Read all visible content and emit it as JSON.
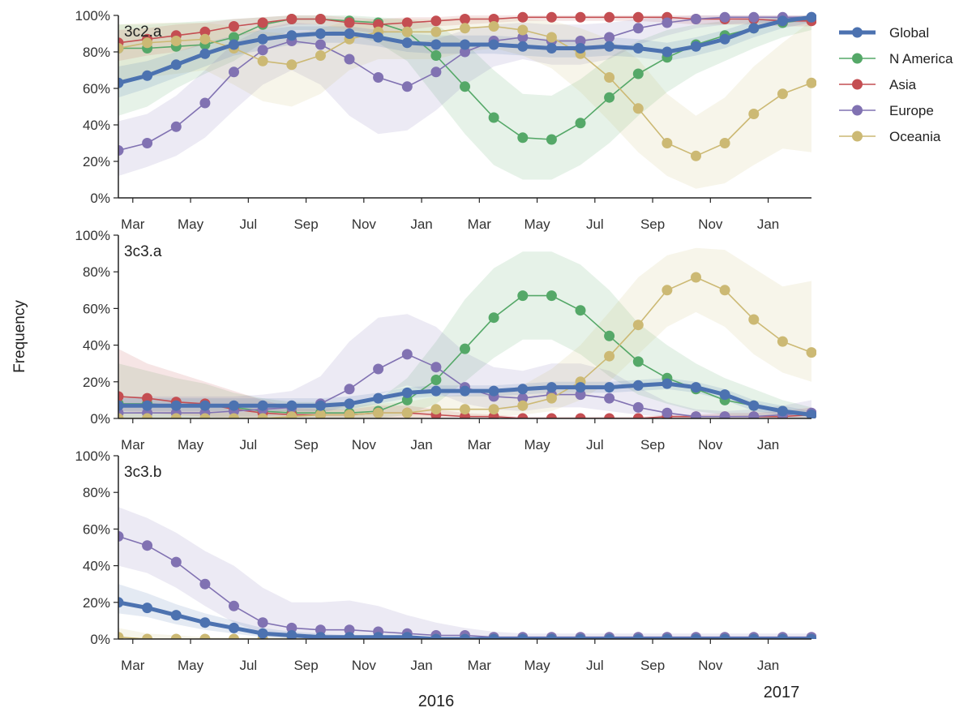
{
  "chart_data": [
    {
      "type": "line",
      "panel_label": "3c2.a",
      "ylabel": "",
      "ylim": [
        0,
        100
      ],
      "yticks": [
        "0%",
        "20%",
        "40%",
        "60%",
        "80%",
        "100%"
      ],
      "x_month_index_start": 0,
      "x_range_months": [
        0,
        24
      ],
      "series": [
        {
          "name": "Global",
          "values": [
            63,
            67,
            73,
            79,
            84,
            87,
            89,
            90,
            90,
            88,
            85,
            84,
            84,
            84,
            83,
            82,
            82,
            83,
            82,
            80,
            83,
            87,
            93,
            97,
            99
          ],
          "ci_low": [
            55,
            60,
            66,
            72,
            78,
            81,
            84,
            85,
            85,
            83,
            80,
            79,
            79,
            79,
            78,
            77,
            77,
            78,
            77,
            75,
            78,
            82,
            88,
            93,
            96
          ],
          "ci_high": [
            72,
            75,
            80,
            85,
            89,
            92,
            94,
            94,
            94,
            92,
            90,
            89,
            89,
            89,
            88,
            87,
            87,
            88,
            87,
            85,
            88,
            92,
            97,
            99,
            100
          ]
        },
        {
          "name": "N America",
          "values": [
            82,
            82,
            83,
            84,
            88,
            95,
            98,
            98,
            97,
            96,
            91,
            78,
            61,
            44,
            33,
            32,
            41,
            55,
            68,
            77,
            84,
            89,
            93,
            96,
            98
          ],
          "ci_low": [
            45,
            50,
            60,
            68,
            75,
            85,
            92,
            92,
            90,
            85,
            75,
            55,
            35,
            18,
            10,
            10,
            18,
            30,
            45,
            58,
            68,
            75,
            82,
            88,
            92
          ],
          "ci_high": [
            95,
            95,
            96,
            97,
            98,
            99,
            100,
            100,
            100,
            99,
            98,
            95,
            85,
            70,
            57,
            56,
            65,
            77,
            86,
            92,
            95,
            97,
            98,
            99,
            100
          ]
        },
        {
          "name": "Asia",
          "values": [
            85,
            87,
            89,
            91,
            94,
            96,
            98,
            98,
            96,
            95,
            96,
            97,
            98,
            98,
            99,
            99,
            99,
            99,
            99,
            99,
            98,
            98,
            98,
            97,
            97
          ],
          "ci_low": [
            75,
            78,
            80,
            84,
            88,
            92,
            95,
            95,
            92,
            90,
            92,
            94,
            95,
            96,
            97,
            97,
            97,
            97,
            97,
            96,
            95,
            95,
            95,
            94,
            94
          ],
          "ci_high": [
            92,
            93,
            95,
            96,
            98,
            99,
            100,
            100,
            99,
            98,
            99,
            99,
            100,
            100,
            100,
            100,
            100,
            100,
            100,
            100,
            100,
            100,
            100,
            100,
            100
          ]
        },
        {
          "name": "Europe",
          "values": [
            26,
            30,
            39,
            52,
            69,
            81,
            86,
            84,
            76,
            66,
            61,
            69,
            80,
            86,
            88,
            86,
            86,
            88,
            93,
            96,
            98,
            99,
            99,
            99,
            99
          ],
          "ci_low": [
            12,
            17,
            23,
            33,
            48,
            62,
            70,
            62,
            45,
            35,
            37,
            48,
            62,
            72,
            76,
            73,
            73,
            76,
            84,
            89,
            93,
            95,
            96,
            96,
            96
          ],
          "ci_high": [
            42,
            46,
            56,
            70,
            85,
            93,
            96,
            95,
            92,
            88,
            84,
            87,
            92,
            95,
            96,
            95,
            95,
            96,
            98,
            99,
            100,
            100,
            100,
            100,
            100
          ]
        },
        {
          "name": "Oceania",
          "values": [
            82,
            85,
            86,
            87,
            82,
            75,
            73,
            78,
            87,
            91,
            91,
            91,
            93,
            94,
            92,
            88,
            79,
            66,
            49,
            30,
            23,
            30,
            46,
            57,
            63
          ],
          "ci_low": [
            62,
            66,
            68,
            70,
            62,
            53,
            50,
            57,
            70,
            76,
            76,
            76,
            80,
            82,
            78,
            71,
            58,
            42,
            25,
            12,
            5,
            8,
            18,
            27,
            25
          ],
          "ci_high": [
            95,
            96,
            96,
            96,
            94,
            91,
            90,
            93,
            97,
            98,
            98,
            98,
            99,
            99,
            98,
            97,
            93,
            87,
            76,
            57,
            45,
            55,
            72,
            85,
            97
          ]
        }
      ]
    },
    {
      "type": "line",
      "panel_label": "3c3.a",
      "ylabel": "",
      "ylim": [
        0,
        100
      ],
      "yticks": [
        "0%",
        "20%",
        "40%",
        "60%",
        "80%",
        "100%"
      ],
      "x_range_months": [
        0,
        24
      ],
      "series": [
        {
          "name": "Global",
          "values": [
            7,
            7,
            7,
            7,
            7,
            7,
            7,
            7,
            8,
            11,
            14,
            15,
            15,
            15,
            16,
            17,
            17,
            17,
            18,
            19,
            17,
            13,
            7,
            4,
            2
          ],
          "ci_low": [
            4,
            4,
            4,
            4,
            4,
            4,
            4,
            4,
            5,
            8,
            11,
            12,
            12,
            12,
            13,
            14,
            14,
            14,
            15,
            16,
            14,
            10,
            4,
            2,
            1
          ],
          "ci_high": [
            11,
            11,
            11,
            11,
            11,
            11,
            11,
            11,
            12,
            14,
            17,
            18,
            18,
            18,
            19,
            20,
            20,
            20,
            21,
            22,
            20,
            16,
            10,
            7,
            4
          ]
        },
        {
          "name": "N America",
          "values": [
            8,
            8,
            7,
            7,
            6,
            4,
            3,
            3,
            3,
            4,
            10,
            21,
            38,
            55,
            67,
            67,
            59,
            45,
            31,
            22,
            16,
            10,
            7,
            4,
            2
          ],
          "ci_low": [
            0,
            0,
            0,
            0,
            0,
            0,
            0,
            0,
            0,
            0,
            2,
            8,
            20,
            33,
            43,
            43,
            35,
            23,
            13,
            8,
            4,
            2,
            1,
            0,
            0
          ],
          "ci_high": [
            30,
            26,
            22,
            19,
            14,
            11,
            9,
            9,
            9,
            10,
            22,
            42,
            65,
            82,
            91,
            91,
            84,
            70,
            52,
            40,
            30,
            22,
            16,
            10,
            6
          ]
        },
        {
          "name": "Asia",
          "values": [
            12,
            11,
            9,
            8,
            5,
            3,
            2,
            2,
            2,
            3,
            3,
            2,
            1,
            1,
            0,
            0,
            0,
            0,
            0,
            1,
            1,
            1,
            1,
            1,
            2
          ],
          "ci_low": [
            4,
            3,
            2,
            1,
            0,
            0,
            0,
            0,
            0,
            0,
            0,
            0,
            0,
            0,
            0,
            0,
            0,
            0,
            0,
            0,
            0,
            0,
            0,
            0,
            0
          ],
          "ci_high": [
            38,
            30,
            25,
            20,
            15,
            10,
            6,
            5,
            5,
            7,
            7,
            5,
            3,
            2,
            1,
            1,
            1,
            1,
            1,
            2,
            2,
            3,
            3,
            4,
            6
          ]
        },
        {
          "name": "Europe",
          "values": [
            3,
            3,
            3,
            3,
            4,
            5,
            6,
            8,
            16,
            27,
            35,
            28,
            17,
            12,
            11,
            13,
            13,
            11,
            6,
            3,
            1,
            1,
            1,
            2,
            3
          ],
          "ci_low": [
            0,
            0,
            0,
            0,
            1,
            1,
            2,
            3,
            7,
            13,
            18,
            14,
            8,
            5,
            4,
            6,
            6,
            4,
            2,
            1,
            0,
            0,
            0,
            0,
            0
          ],
          "ci_high": [
            12,
            12,
            12,
            12,
            12,
            13,
            15,
            23,
            42,
            55,
            57,
            50,
            36,
            28,
            26,
            30,
            30,
            26,
            17,
            9,
            5,
            4,
            5,
            7,
            10
          ]
        },
        {
          "name": "Oceania",
          "values": [
            0,
            0,
            0,
            0,
            0,
            0,
            1,
            2,
            2,
            3,
            3,
            5,
            5,
            5,
            7,
            11,
            20,
            34,
            51,
            70,
            77,
            70,
            54,
            42,
            36
          ],
          "ci_low": [
            0,
            0,
            0,
            0,
            0,
            0,
            0,
            0,
            0,
            0,
            0,
            1,
            1,
            1,
            2,
            4,
            10,
            20,
            35,
            50,
            58,
            50,
            35,
            25,
            20
          ],
          "ci_high": [
            3,
            3,
            3,
            3,
            3,
            4,
            5,
            6,
            7,
            8,
            9,
            12,
            13,
            14,
            18,
            27,
            40,
            58,
            77,
            89,
            93,
            92,
            82,
            72,
            75
          ]
        }
      ]
    },
    {
      "type": "line",
      "panel_label": "3c3.b",
      "ylabel": "",
      "ylim": [
        0,
        100
      ],
      "yticks": [
        "0%",
        "20%",
        "40%",
        "60%",
        "80%",
        "100%"
      ],
      "x_range_months": [
        0,
        24
      ],
      "series": [
        {
          "name": "Global",
          "values": [
            20,
            17,
            13,
            9,
            6,
            3,
            2,
            1,
            1,
            1,
            1,
            0,
            0,
            0,
            0,
            0,
            0,
            0,
            0,
            0,
            0,
            0,
            0,
            0,
            0
          ],
          "ci_low": [
            14,
            12,
            8,
            5,
            3,
            1,
            0,
            0,
            0,
            0,
            0,
            0,
            0,
            0,
            0,
            0,
            0,
            0,
            0,
            0,
            0,
            0,
            0,
            0,
            0
          ],
          "ci_high": [
            30,
            25,
            19,
            14,
            10,
            6,
            4,
            3,
            2,
            2,
            2,
            1,
            1,
            1,
            1,
            1,
            1,
            1,
            1,
            1,
            1,
            1,
            1,
            1,
            1
          ]
        },
        {
          "name": "Europe",
          "values": [
            56,
            51,
            42,
            30,
            18,
            9,
            6,
            5,
            5,
            4,
            3,
            2,
            2,
            1,
            1,
            1,
            1,
            1,
            1,
            1,
            1,
            1,
            1,
            1,
            1
          ],
          "ci_low": [
            40,
            36,
            28,
            18,
            9,
            3,
            2,
            1,
            1,
            1,
            0,
            0,
            0,
            0,
            0,
            0,
            0,
            0,
            0,
            0,
            0,
            0,
            0,
            0,
            0
          ],
          "ci_high": [
            72,
            66,
            58,
            48,
            40,
            28,
            20,
            20,
            21,
            18,
            13,
            9,
            6,
            4,
            3,
            3,
            3,
            3,
            3,
            3,
            3,
            3,
            3,
            3,
            3
          ]
        },
        {
          "name": "Oceania",
          "values": [
            1,
            0,
            0,
            0,
            0,
            0,
            0,
            0,
            0,
            0,
            0,
            0,
            0,
            0,
            0,
            0,
            0,
            0,
            0,
            0,
            0,
            0,
            0,
            0,
            0
          ],
          "ci_low": [
            0,
            0,
            0,
            0,
            0,
            0,
            0,
            0,
            0,
            0,
            0,
            0,
            0,
            0,
            0,
            0,
            0,
            0,
            0,
            0,
            0,
            0,
            0,
            0,
            0
          ],
          "ci_high": [
            6,
            3,
            2,
            1,
            1,
            1,
            1,
            1,
            1,
            1,
            1,
            1,
            1,
            1,
            1,
            1,
            1,
            1,
            1,
            1,
            1,
            1,
            1,
            1,
            1
          ]
        }
      ]
    }
  ],
  "x_ticks": [
    {
      "label": "Mar",
      "month": 0.5
    },
    {
      "label": "May",
      "month": 2.5
    },
    {
      "label": "Jul",
      "month": 4.5
    },
    {
      "label": "Sep",
      "month": 6.5
    },
    {
      "label": "Nov",
      "month": 8.5
    },
    {
      "label": "Jan",
      "month": 10.5
    },
    {
      "label": "Mar",
      "month": 12.5
    },
    {
      "label": "May",
      "month": 14.5
    },
    {
      "label": "Jul",
      "month": 16.5
    },
    {
      "label": "Sep",
      "month": 18.5
    },
    {
      "label": "Nov",
      "month": 20.5
    },
    {
      "label": "Jan",
      "month": 22.5
    }
  ],
  "year_labels": {
    "first": "2016",
    "second": "2017"
  },
  "ylabel": "Frequency",
  "legend": {
    "placement": "right",
    "items": [
      {
        "name": "Global",
        "color": "#4c72b0",
        "thick": true
      },
      {
        "name": "N America",
        "color": "#55a868",
        "thick": false
      },
      {
        "name": "Asia",
        "color": "#c44e52",
        "thick": false
      },
      {
        "name": "Europe",
        "color": "#8172b2",
        "thick": false
      },
      {
        "name": "Oceania",
        "color": "#ccb974",
        "thick": false
      }
    ]
  },
  "colors": {
    "Global": "#4c72b0",
    "N America": "#55a868",
    "Asia": "#c44e52",
    "Europe": "#8172b2",
    "Oceania": "#ccb974"
  }
}
